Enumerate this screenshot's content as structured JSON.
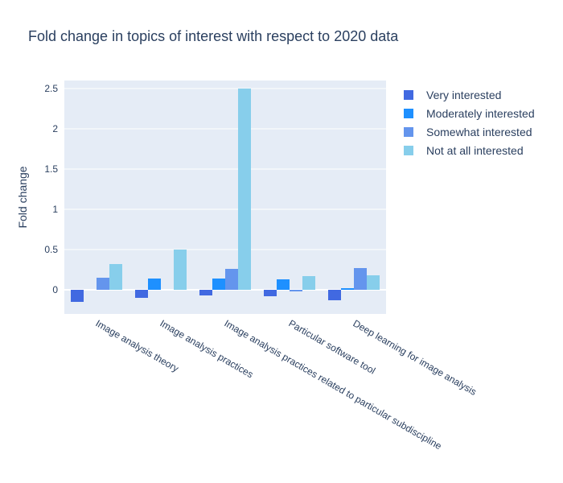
{
  "chart_data": {
    "type": "bar",
    "title": "Fold change in topics of interest with respect to 2020 data",
    "xlabel": "",
    "ylabel": "Fold change",
    "ylim": [
      -0.3,
      2.6
    ],
    "yticks": [
      0,
      0.5,
      1,
      1.5,
      2,
      2.5
    ],
    "ytick_labels": [
      "0",
      "0.5",
      "1",
      "1.5",
      "2",
      "2.5"
    ],
    "categories": [
      "Image analysis theory",
      "Image analysis practices",
      "Image analysis practices related to particular subdiscipline",
      "Particular software tool",
      "Deep learning for image analysis"
    ],
    "series": [
      {
        "name": "Very interested",
        "color": "#4169e1",
        "values": [
          -0.15,
          -0.1,
          -0.07,
          -0.08,
          -0.13
        ]
      },
      {
        "name": "Moderately interested",
        "color": "#1e90ff",
        "values": [
          0.0,
          0.14,
          0.14,
          0.13,
          0.02
        ]
      },
      {
        "name": "Somewhat interested",
        "color": "#6495ed",
        "values": [
          0.15,
          0.0,
          0.26,
          -0.02,
          0.27
        ]
      },
      {
        "name": "Not at all interested",
        "color": "#87ceeb",
        "values": [
          0.32,
          0.5,
          2.5,
          0.17,
          0.18
        ]
      }
    ],
    "legend_position": "top-right",
    "grid": true,
    "plot_bgcolor": "#e5ecf6"
  }
}
